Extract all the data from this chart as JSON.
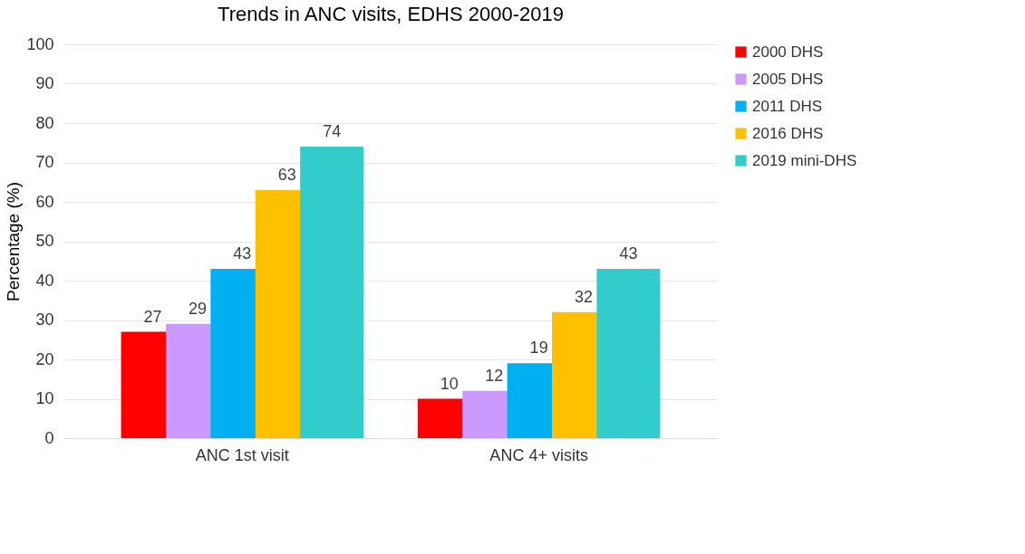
{
  "chart_data": {
    "type": "bar",
    "title": "Trends in ANC visits, EDHS 2000-2019",
    "ylabel": "Percentage  (%)",
    "categories": [
      "ANC 1st visit",
      "ANC 4+ visits"
    ],
    "series": [
      {
        "name": "2000 DHS",
        "color": "#ff0000",
        "values": [
          27,
          10
        ]
      },
      {
        "name": "2005 DHS",
        "color": "#cc99ff",
        "values": [
          29,
          12
        ]
      },
      {
        "name": "2011 DHS",
        "color": "#00b0f0",
        "values": [
          43,
          19
        ]
      },
      {
        "name": "2016 DHS",
        "color": "#ffc000",
        "values": [
          63,
          32
        ]
      },
      {
        "name": "2019 mini-DHS",
        "color": "#33cccc",
        "values": [
          74,
          43
        ]
      }
    ],
    "ylim": [
      0,
      100
    ],
    "yticks": [
      0,
      10,
      20,
      30,
      40,
      50,
      60,
      70,
      80,
      90,
      100
    ],
    "grid": "y",
    "legend": "right",
    "data_labels": true
  }
}
